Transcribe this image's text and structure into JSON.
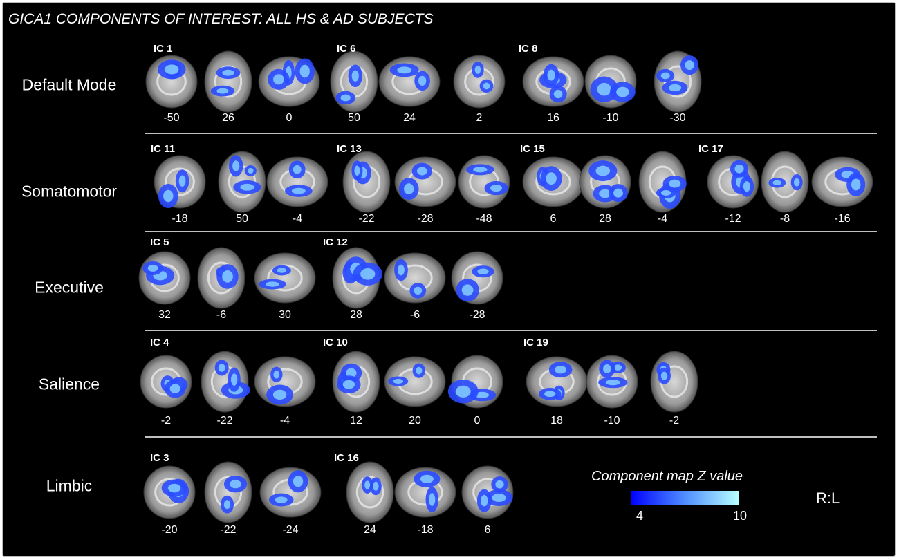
{
  "title": "GICA1 COMPONENTS OF INTEREST: ALL HS & AD SUBJECTS",
  "networks": [
    {
      "label": "Default Mode",
      "components": [
        {
          "label": "IC 1",
          "slices": [
            -50,
            26,
            0
          ]
        },
        {
          "label": "IC 6",
          "slices": [
            50,
            24,
            2
          ]
        },
        {
          "label": "IC 8",
          "slices": [
            16,
            -10,
            -30
          ]
        }
      ]
    },
    {
      "label": "Somatomotor",
      "components": [
        {
          "label": "IC 11",
          "slices": [
            -18,
            50,
            -4
          ]
        },
        {
          "label": "IC 13",
          "slices": [
            -22,
            -28,
            -48
          ]
        },
        {
          "label": "IC 15",
          "slices": [
            6,
            28,
            -4
          ]
        },
        {
          "label": "IC 17",
          "slices": [
            -12,
            -8,
            -16
          ]
        }
      ]
    },
    {
      "label": "Executive",
      "components": [
        {
          "label": "IC 5",
          "slices": [
            32,
            -6,
            30
          ]
        },
        {
          "label": "IC 12",
          "slices": [
            28,
            -6,
            -28
          ]
        }
      ]
    },
    {
      "label": "Salience",
      "components": [
        {
          "label": "IC 4",
          "slices": [
            -2,
            -22,
            -4
          ]
        },
        {
          "label": "IC 10",
          "slices": [
            12,
            20,
            0
          ]
        },
        {
          "label": "IC 19",
          "slices": [
            18,
            -10,
            -2
          ]
        }
      ]
    },
    {
      "label": "Limbic",
      "components": [
        {
          "label": "IC 3",
          "slices": [
            -20,
            -22,
            -24
          ]
        },
        {
          "label": "IC 16",
          "slices": [
            24,
            -18,
            6
          ]
        }
      ]
    }
  ],
  "colorbar": {
    "title": "Component map Z value",
    "min": 4,
    "max": 10
  },
  "orientation": "R:L"
}
